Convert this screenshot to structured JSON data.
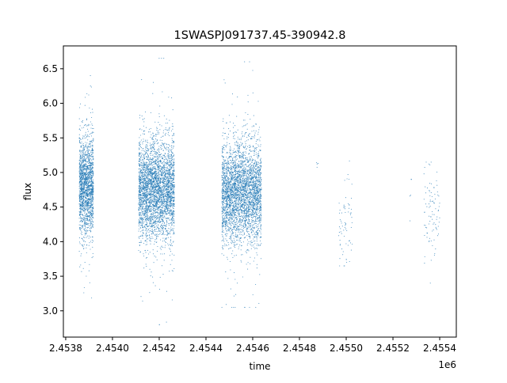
{
  "chart_data": {
    "type": "scatter",
    "title": "1SWASPJ091737.45-390942.8",
    "xlabel": "time",
    "ylabel": "flux",
    "x_offset_label": "1e6",
    "xlim": [
      2453790,
      2455471
    ],
    "ylim": [
      2.62,
      6.83
    ],
    "x_ticks": [
      2453800,
      2454000,
      2454200,
      2454400,
      2454600,
      2454800,
      2455000,
      2455200,
      2455400
    ],
    "x_tick_labels": [
      "2.4538",
      "2.4540",
      "2.4542",
      "2.4544",
      "2.4546",
      "2.4548",
      "2.4550",
      "2.4552",
      "2.4554"
    ],
    "y_ticks": [
      3.0,
      3.5,
      4.0,
      4.5,
      5.0,
      5.5,
      6.0,
      6.5
    ],
    "y_tick_labels": [
      "3.0",
      "3.5",
      "4.0",
      "4.5",
      "5.0",
      "5.5",
      "6.0",
      "6.5"
    ],
    "grid": false,
    "legend": "none",
    "marker_color": "#1f77b4",
    "groups": [
      {
        "t_range": [
          2453858,
          2453919
        ],
        "flux_mean": 4.8,
        "flux_sd": 0.35,
        "flux_range": [
          2.85,
          6.4
        ],
        "approx_points": 1800
      },
      {
        "t_range": [
          2454112,
          2454265
        ],
        "flux_mean": 4.75,
        "flux_sd": 0.35,
        "flux_range": [
          2.8,
          6.65
        ],
        "approx_points": 3500
      },
      {
        "t_range": [
          2454468,
          2454637
        ],
        "flux_mean": 4.7,
        "flux_sd": 0.35,
        "flux_range": [
          3.05,
          6.6
        ],
        "approx_points": 3500
      },
      {
        "t_range": [
          2454870,
          2454880
        ],
        "flux_mean": 5.1,
        "flux_sd": 0.05,
        "flux_range": [
          4.4,
          5.15
        ],
        "approx_points": 4
      },
      {
        "t_range": [
          2454966,
          2455027
        ],
        "flux_mean": 4.3,
        "flux_sd": 0.35,
        "flux_range": [
          3.65,
          5.3
        ],
        "approx_points": 70
      },
      {
        "t_range": [
          2455271,
          2455281
        ],
        "flux_mean": 4.6,
        "flux_sd": 0.2,
        "flux_range": [
          4.3,
          4.9
        ],
        "approx_points": 5
      },
      {
        "t_range": [
          2455332,
          2455400
        ],
        "flux_mean": 4.45,
        "flux_sd": 0.35,
        "flux_range": [
          3.4,
          5.15
        ],
        "approx_points": 90
      }
    ]
  }
}
